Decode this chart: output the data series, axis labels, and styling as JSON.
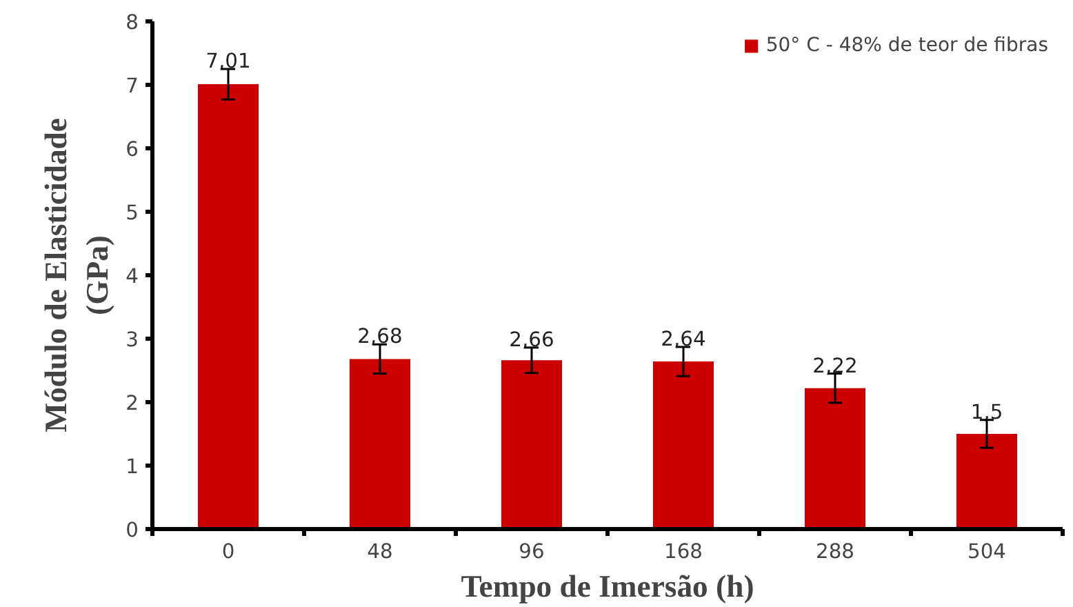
{
  "chart_data": {
    "type": "bar",
    "xlabel": "Tempo de Imersão (h)",
    "ylabel": "Módulo de Elasticidade\n(GPa)",
    "categories": [
      "0",
      "48",
      "96",
      "168",
      "288",
      "504"
    ],
    "series": [
      {
        "name": "50° C - 48% de teor de fibras",
        "color": "#cc0000",
        "values": [
          7.01,
          2.68,
          2.66,
          2.64,
          2.22,
          1.5
        ],
        "errors": [
          0.24,
          0.23,
          0.2,
          0.23,
          0.23,
          0.22
        ]
      }
    ],
    "value_labels": [
      "7,01",
      "2,68",
      "2,66",
      "2,64",
      "2,22",
      "1,5"
    ],
    "ylim": [
      0,
      8
    ],
    "yticks": [
      0,
      1,
      2,
      3,
      4,
      5,
      6,
      7,
      8
    ],
    "grid": false,
    "legend": "top right"
  }
}
